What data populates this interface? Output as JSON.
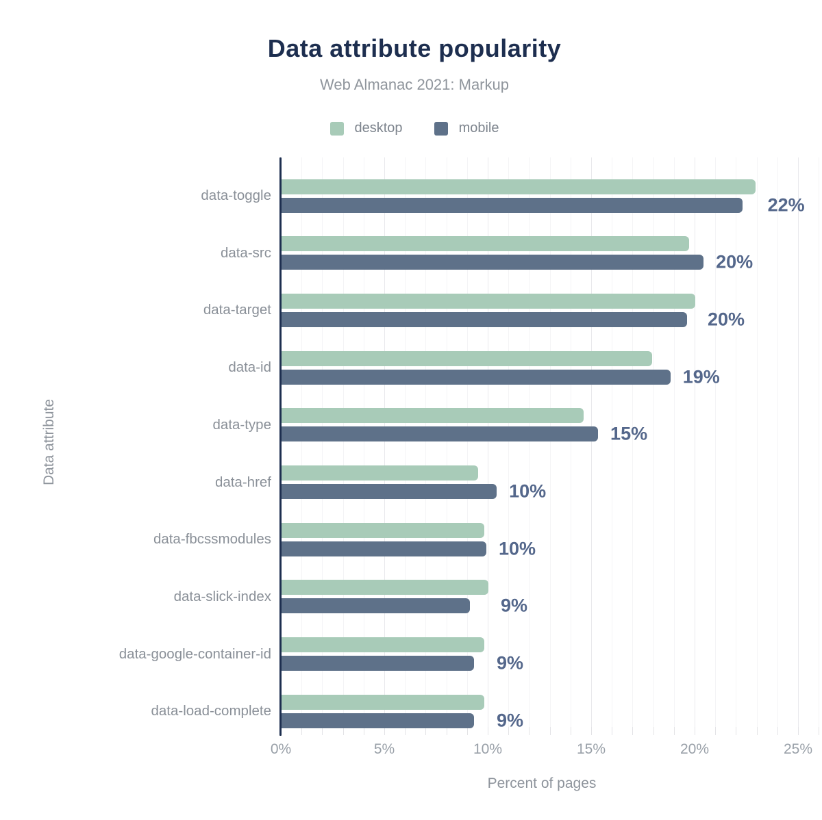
{
  "title": "Data attribute popularity",
  "subtitle": "Web Almanac 2021: Markup",
  "legend": {
    "desktop_label": "desktop",
    "mobile_label": "mobile"
  },
  "axes": {
    "x_title": "Percent of pages",
    "y_title": "Data attribute",
    "x_tick_labels": [
      "0%",
      "5%",
      "10%",
      "15%",
      "20%",
      "25%"
    ],
    "x_tick_values": [
      0,
      5,
      10,
      15,
      20,
      25
    ]
  },
  "colors": {
    "desktop": "#a8cbb8",
    "mobile": "#5e7189",
    "title": "#1d2e4f",
    "subtitle": "#8f959c",
    "value_label": "#54678b",
    "axis_line": "#1d2e4f"
  },
  "chart_data": {
    "type": "bar",
    "orientation": "horizontal",
    "title": "Data attribute popularity",
    "subtitle": "Web Almanac 2021: Markup",
    "xlabel": "Percent of pages",
    "ylabel": "Data attribute",
    "xlim": [
      0,
      25
    ],
    "grid": "vertical, minor every 1%, major every 5%",
    "legend_position": "top",
    "categories": [
      "data-toggle",
      "data-src",
      "data-target",
      "data-id",
      "data-type",
      "data-href",
      "data-fbcssmodules",
      "data-slick-index",
      "data-google-container-id",
      "data-load-complete"
    ],
    "series": [
      {
        "name": "desktop",
        "color": "#a8cbb8",
        "values": [
          22.9,
          19.7,
          20.0,
          17.9,
          14.6,
          9.5,
          9.8,
          10.0,
          9.8,
          9.8
        ]
      },
      {
        "name": "mobile",
        "color": "#5e7189",
        "values": [
          22.3,
          20.4,
          19.6,
          18.8,
          15.3,
          10.4,
          9.9,
          9.1,
          9.3,
          9.3
        ]
      }
    ],
    "value_labels": [
      "22%",
      "20%",
      "20%",
      "19%",
      "15%",
      "10%",
      "10%",
      "9%",
      "9%",
      "9%"
    ],
    "value_labels_series": "mobile"
  }
}
